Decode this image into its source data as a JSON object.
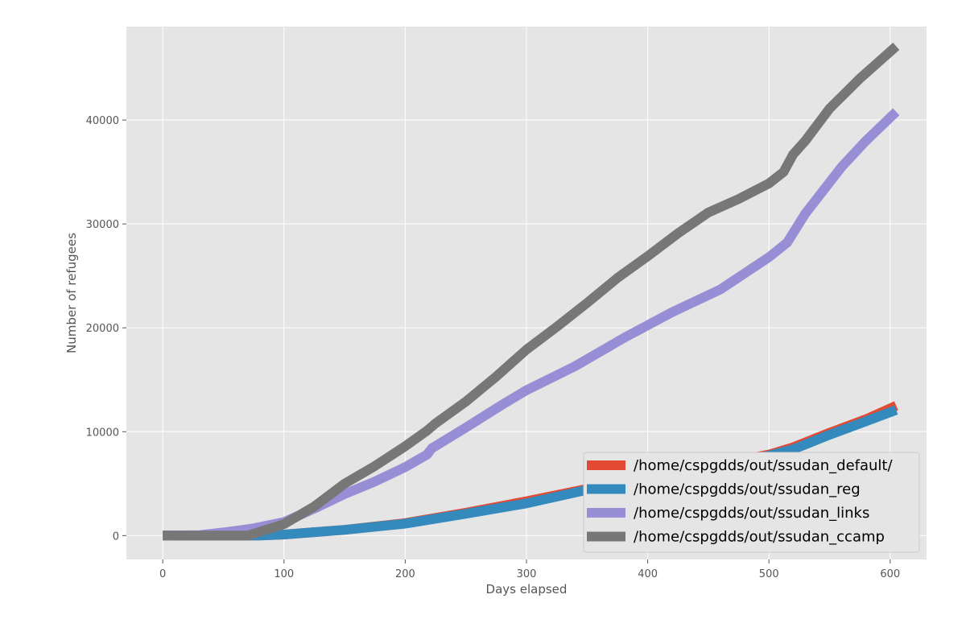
{
  "chart_data": {
    "type": "line",
    "title": "",
    "xlabel": "Days elapsed",
    "ylabel": "Number of refugees",
    "xlim": [
      -30,
      630
    ],
    "ylim": [
      -2300,
      49000
    ],
    "xticks": [
      0,
      100,
      200,
      300,
      400,
      500,
      600
    ],
    "yticks": [
      0,
      10000,
      20000,
      30000,
      40000
    ],
    "grid": true,
    "style": "ggplot",
    "legend_position": "lower-right",
    "series": [
      {
        "name": "/home/cspgdds/out/ssudan_default/",
        "color": "#E24A33",
        "x": [
          0,
          50,
          80,
          100,
          150,
          200,
          250,
          300,
          350,
          400,
          450,
          500,
          520,
          550,
          580,
          605
        ],
        "y": [
          0,
          0,
          0,
          100,
          550,
          1200,
          2200,
          3300,
          4500,
          5600,
          6700,
          7800,
          8500,
          9900,
          11200,
          12500
        ]
      },
      {
        "name": "/home/cspgdds/out/ssudan_reg",
        "color": "#348ABD",
        "x": [
          0,
          50,
          80,
          100,
          150,
          200,
          250,
          300,
          350,
          400,
          450,
          500,
          520,
          550,
          580,
          605
        ],
        "y": [
          0,
          0,
          0,
          100,
          550,
          1150,
          2100,
          3100,
          4400,
          5500,
          6600,
          7700,
          8300,
          9700,
          11000,
          12100
        ]
      },
      {
        "name": "/home/cspgdds/out/ssudan_links",
        "color": "#988ED5",
        "x": [
          0,
          30,
          50,
          75,
          100,
          125,
          150,
          175,
          200,
          218,
          222,
          250,
          280,
          300,
          340,
          380,
          420,
          460,
          500,
          515,
          530,
          560,
          580,
          605
        ],
        "y": [
          0,
          50,
          300,
          700,
          1300,
          2600,
          4000,
          5200,
          6600,
          7800,
          8400,
          10400,
          12600,
          14000,
          16300,
          19000,
          21500,
          23700,
          26800,
          28200,
          31000,
          35500,
          38000,
          40800
        ]
      },
      {
        "name": "/home/cspgdds/out/ssudan_ccamp",
        "color": "#777777",
        "x": [
          0,
          70,
          100,
          125,
          150,
          175,
          200,
          218,
          225,
          250,
          275,
          300,
          325,
          350,
          375,
          400,
          425,
          450,
          475,
          500,
          512,
          520,
          530,
          550,
          575,
          605
        ],
        "y": [
          0,
          0,
          1100,
          2800,
          5000,
          6700,
          8600,
          10100,
          10800,
          12900,
          15300,
          17900,
          20100,
          22400,
          24800,
          26900,
          29100,
          31100,
          32400,
          33900,
          35000,
          36700,
          38000,
          41100,
          44000,
          47100
        ]
      }
    ]
  }
}
